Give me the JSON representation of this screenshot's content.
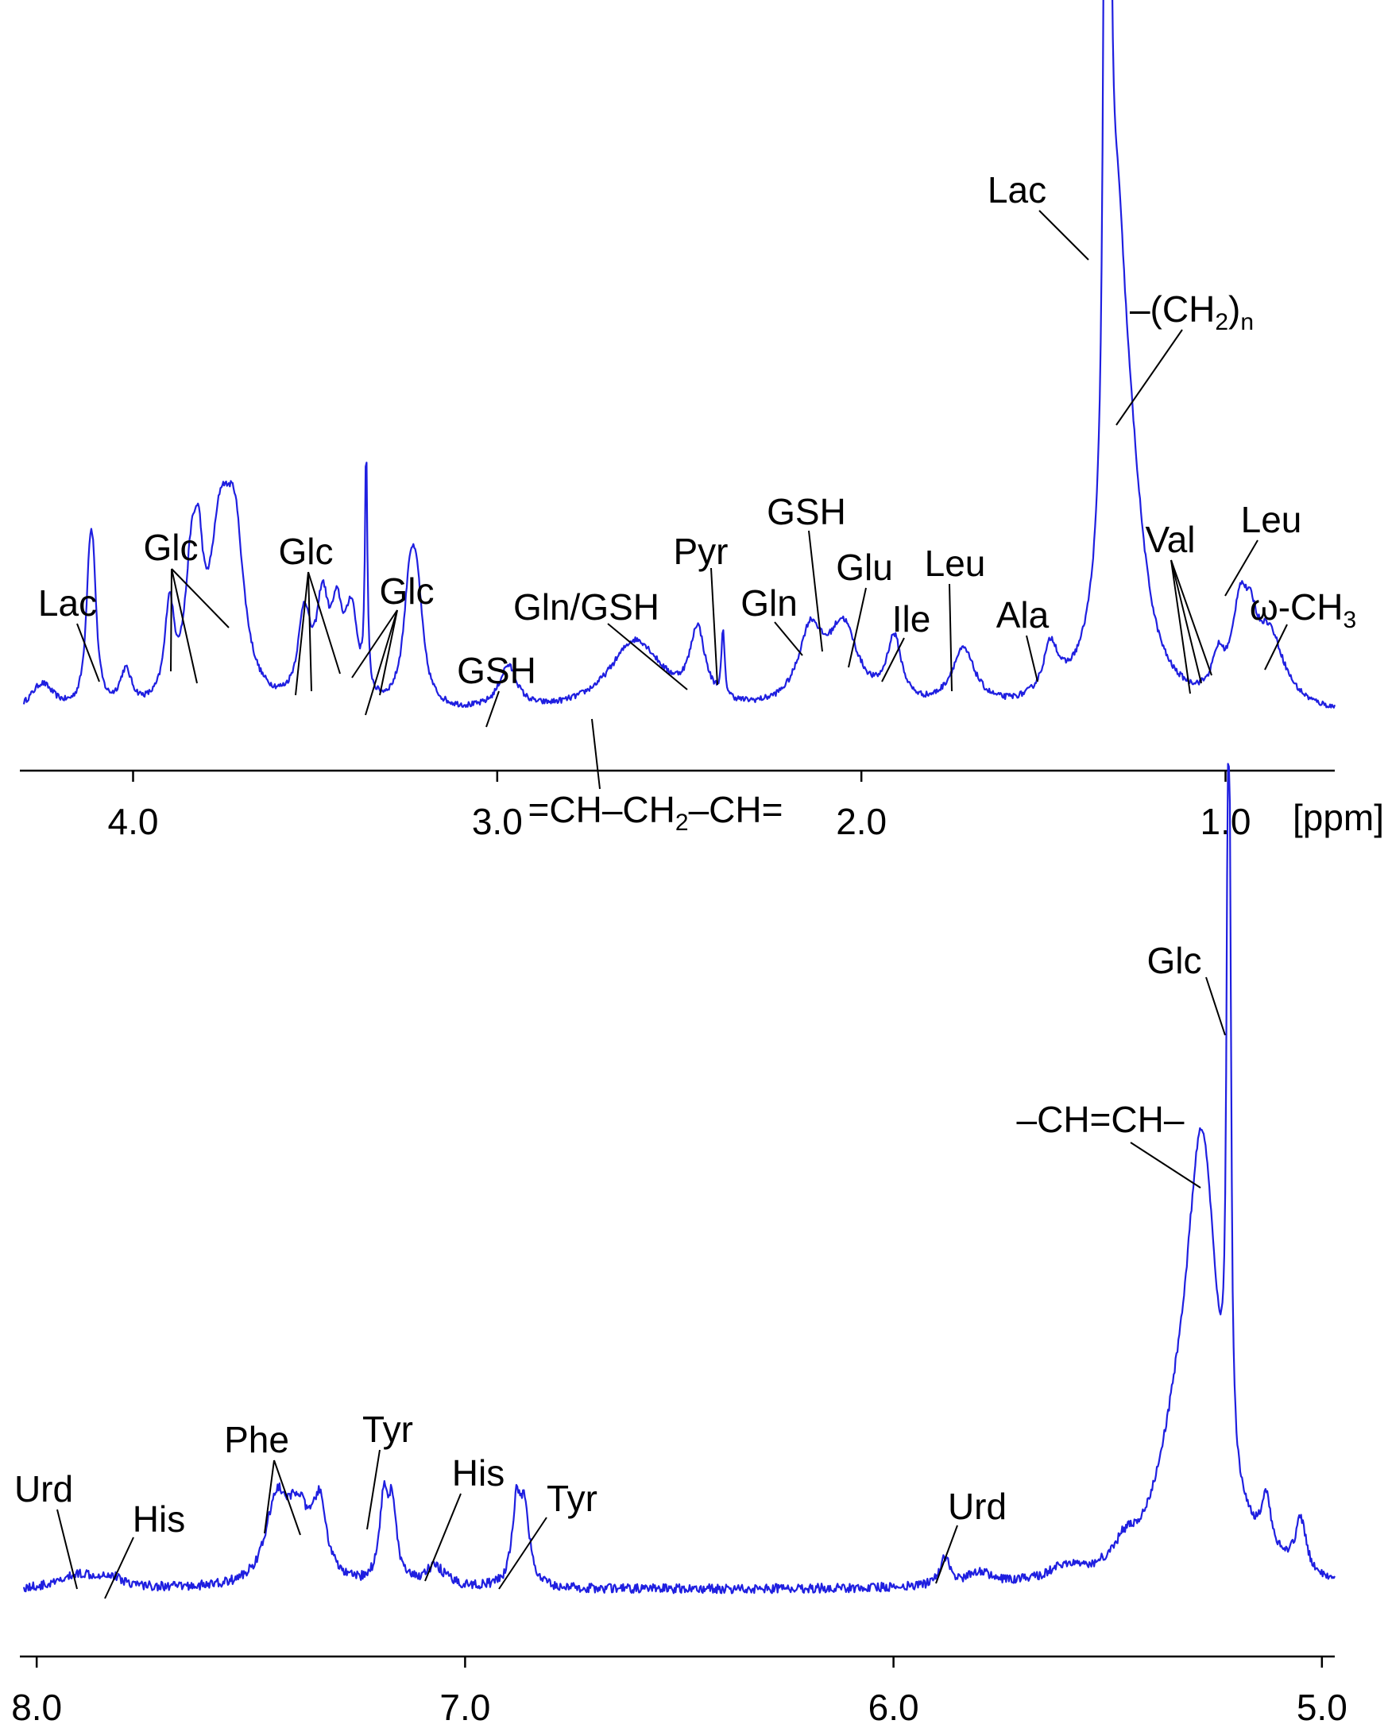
{
  "colors": {
    "spectrum": "#1f1fe0",
    "axis": "#000000",
    "text": "#000000"
  },
  "chart_data": [
    {
      "type": "line",
      "title": "",
      "xlabel": "",
      "ylabel": "",
      "x_unit": "[ppm]",
      "x_reversed": true,
      "xlim": [
        4.3,
        0.7
      ],
      "ylim": [
        0,
        100
      ],
      "x_ticks": [
        {
          "value": 4.0,
          "label": "4.0"
        },
        {
          "value": 3.0,
          "label": "3.0"
        },
        {
          "value": 2.0,
          "label": "2.0"
        },
        {
          "value": 1.0,
          "label": "1.0"
        }
      ],
      "grid": false,
      "series": [
        {
          "baseline": 2,
          "peaks": [
            {
              "x": 4.25,
              "h": 4,
              "w": 0.04
            },
            {
              "x": 4.12,
              "h": 14,
              "w": 0.012
            },
            {
              "x": 4.11,
              "h": 15,
              "w": 0.012
            },
            {
              "x": 4.02,
              "h": 5,
              "w": 0.02
            },
            {
              "x": 3.9,
              "h": 13,
              "w": 0.015
            },
            {
              "x": 3.84,
              "h": 16,
              "w": 0.02
            },
            {
              "x": 3.82,
              "h": 13,
              "w": 0.015
            },
            {
              "x": 3.76,
              "h": 22,
              "w": 0.035
            },
            {
              "x": 3.72,
              "h": 20,
              "w": 0.03
            },
            {
              "x": 3.53,
              "h": 12,
              "w": 0.02
            },
            {
              "x": 3.48,
              "h": 13,
              "w": 0.02
            },
            {
              "x": 3.44,
              "h": 11,
              "w": 0.02
            },
            {
              "x": 3.4,
              "h": 12,
              "w": 0.02
            },
            {
              "x": 3.36,
              "h": 33,
              "w": 0.004
            },
            {
              "x": 3.24,
              "h": 15,
              "w": 0.02
            },
            {
              "x": 3.22,
              "h": 13,
              "w": 0.02
            },
            {
              "x": 2.97,
              "h": 6,
              "w": 0.03
            },
            {
              "x": 2.62,
              "h": 10,
              "w": 0.09
            },
            {
              "x": 2.45,
              "h": 10,
              "w": 0.025
            },
            {
              "x": 2.38,
              "h": 9,
              "w": 0.005
            },
            {
              "x": 2.14,
              "h": 10,
              "w": 0.04
            },
            {
              "x": 2.05,
              "h": 11,
              "w": 0.05
            },
            {
              "x": 1.91,
              "h": 9,
              "w": 0.025
            },
            {
              "x": 1.72,
              "h": 8,
              "w": 0.04
            },
            {
              "x": 1.48,
              "h": 7,
              "w": 0.025
            },
            {
              "x": 1.33,
              "h": 97,
              "w": 0.006
            },
            {
              "x": 1.32,
              "h": 98,
              "w": 0.006
            },
            {
              "x": 1.3,
              "h": 55,
              "w": 0.035
            },
            {
              "x": 1.26,
              "h": 20,
              "w": 0.05
            },
            {
              "x": 1.02,
              "h": 5,
              "w": 0.02
            },
            {
              "x": 0.96,
              "h": 12,
              "w": 0.025
            },
            {
              "x": 0.93,
              "h": 6,
              "w": 0.02
            },
            {
              "x": 0.88,
              "h": 10,
              "w": 0.05
            }
          ]
        }
      ],
      "annotations": [
        {
          "text": "Lac",
          "name": "lac-label-left"
        },
        {
          "text": "Glc",
          "name": "glc-label-1"
        },
        {
          "text": "Glc",
          "name": "glc-label-2"
        },
        {
          "text": "Glc",
          "name": "glc-label-3"
        },
        {
          "text": "GSH",
          "name": "gsh-label-1"
        },
        {
          "text": "Gln/GSH",
          "name": "gln-gsh-label"
        },
        {
          "text": "Pyr",
          "name": "pyr-label"
        },
        {
          "text": "GSH",
          "name": "gsh-label-2"
        },
        {
          "text": "Gln",
          "name": "gln-label"
        },
        {
          "text": "Glu",
          "name": "glu-label"
        },
        {
          "text": "Leu",
          "name": "leu-label-1"
        },
        {
          "text": "Ile",
          "name": "ile-label"
        },
        {
          "text": "Ala",
          "name": "ala-label"
        },
        {
          "text": "Lac",
          "name": "lac-label-main"
        },
        {
          "text": "Val",
          "name": "val-label"
        },
        {
          "text": "Leu",
          "name": "leu-label-2"
        },
        {
          "text": "ω-CH",
          "sub": "3",
          "name": "omega-ch3-label"
        },
        {
          "text": "–(CH",
          "sub": "2",
          "suffix": ")",
          "sub2": "n",
          "name": "ch2n-label"
        },
        {
          "text": "=CH–CH",
          "sub": "2",
          "suffix": "–CH=",
          "name": "allylic-label"
        }
      ]
    },
    {
      "type": "line",
      "title": "",
      "xlabel": "",
      "ylabel": "",
      "x_reversed": true,
      "xlim": [
        8.03,
        4.97
      ],
      "ylim": [
        0,
        100
      ],
      "x_ticks": [
        {
          "value": 8.0,
          "label": "8.0"
        },
        {
          "value": 7.0,
          "label": "7.0"
        },
        {
          "value": 6.0,
          "label": "6.0"
        },
        {
          "value": 5.0,
          "label": "5.0"
        }
      ],
      "grid": false,
      "series": [
        {
          "baseline": 4,
          "peaks": [
            {
              "x": 7.9,
              "h": 2,
              "w": 0.05
            },
            {
              "x": 7.83,
              "h": 1.5,
              "w": 0.04
            },
            {
              "x": 7.44,
              "h": 12,
              "w": 0.03
            },
            {
              "x": 7.39,
              "h": 10,
              "w": 0.03
            },
            {
              "x": 7.34,
              "h": 11,
              "w": 0.02
            },
            {
              "x": 7.19,
              "h": 12,
              "w": 0.012
            },
            {
              "x": 7.17,
              "h": 11,
              "w": 0.012
            },
            {
              "x": 7.07,
              "h": 3,
              "w": 0.03
            },
            {
              "x": 6.88,
              "h": 12,
              "w": 0.012
            },
            {
              "x": 6.86,
              "h": 11,
              "w": 0.012
            },
            {
              "x": 5.88,
              "h": 4,
              "w": 0.015
            },
            {
              "x": 5.8,
              "h": 2,
              "w": 0.03
            },
            {
              "x": 5.6,
              "h": 2,
              "w": 0.05
            },
            {
              "x": 5.46,
              "h": 3,
              "w": 0.03
            },
            {
              "x": 5.28,
              "h": 62,
              "w": 0.045
            },
            {
              "x": 5.34,
              "h": 12,
              "w": 0.06
            },
            {
              "x": 5.22,
              "h": 68,
              "w": 0.004
            },
            {
              "x": 5.215,
              "h": 70,
              "w": 0.004
            },
            {
              "x": 5.13,
              "h": 8,
              "w": 0.015
            },
            {
              "x": 5.05,
              "h": 8,
              "w": 0.015
            }
          ]
        }
      ],
      "annotations": [
        {
          "text": "Urd",
          "name": "urd-label-1"
        },
        {
          "text": "His",
          "name": "his-label-1"
        },
        {
          "text": "Phe",
          "name": "phe-label"
        },
        {
          "text": "Tyr",
          "name": "tyr-label-1"
        },
        {
          "text": "His",
          "name": "his-label-2"
        },
        {
          "text": "Tyr",
          "name": "tyr-label-2"
        },
        {
          "text": "Urd",
          "name": "urd-label-2"
        },
        {
          "text": "Glc",
          "name": "glc-label-bottom"
        },
        {
          "text": "–CH=CH–",
          "name": "olefinic-label"
        }
      ]
    }
  ]
}
